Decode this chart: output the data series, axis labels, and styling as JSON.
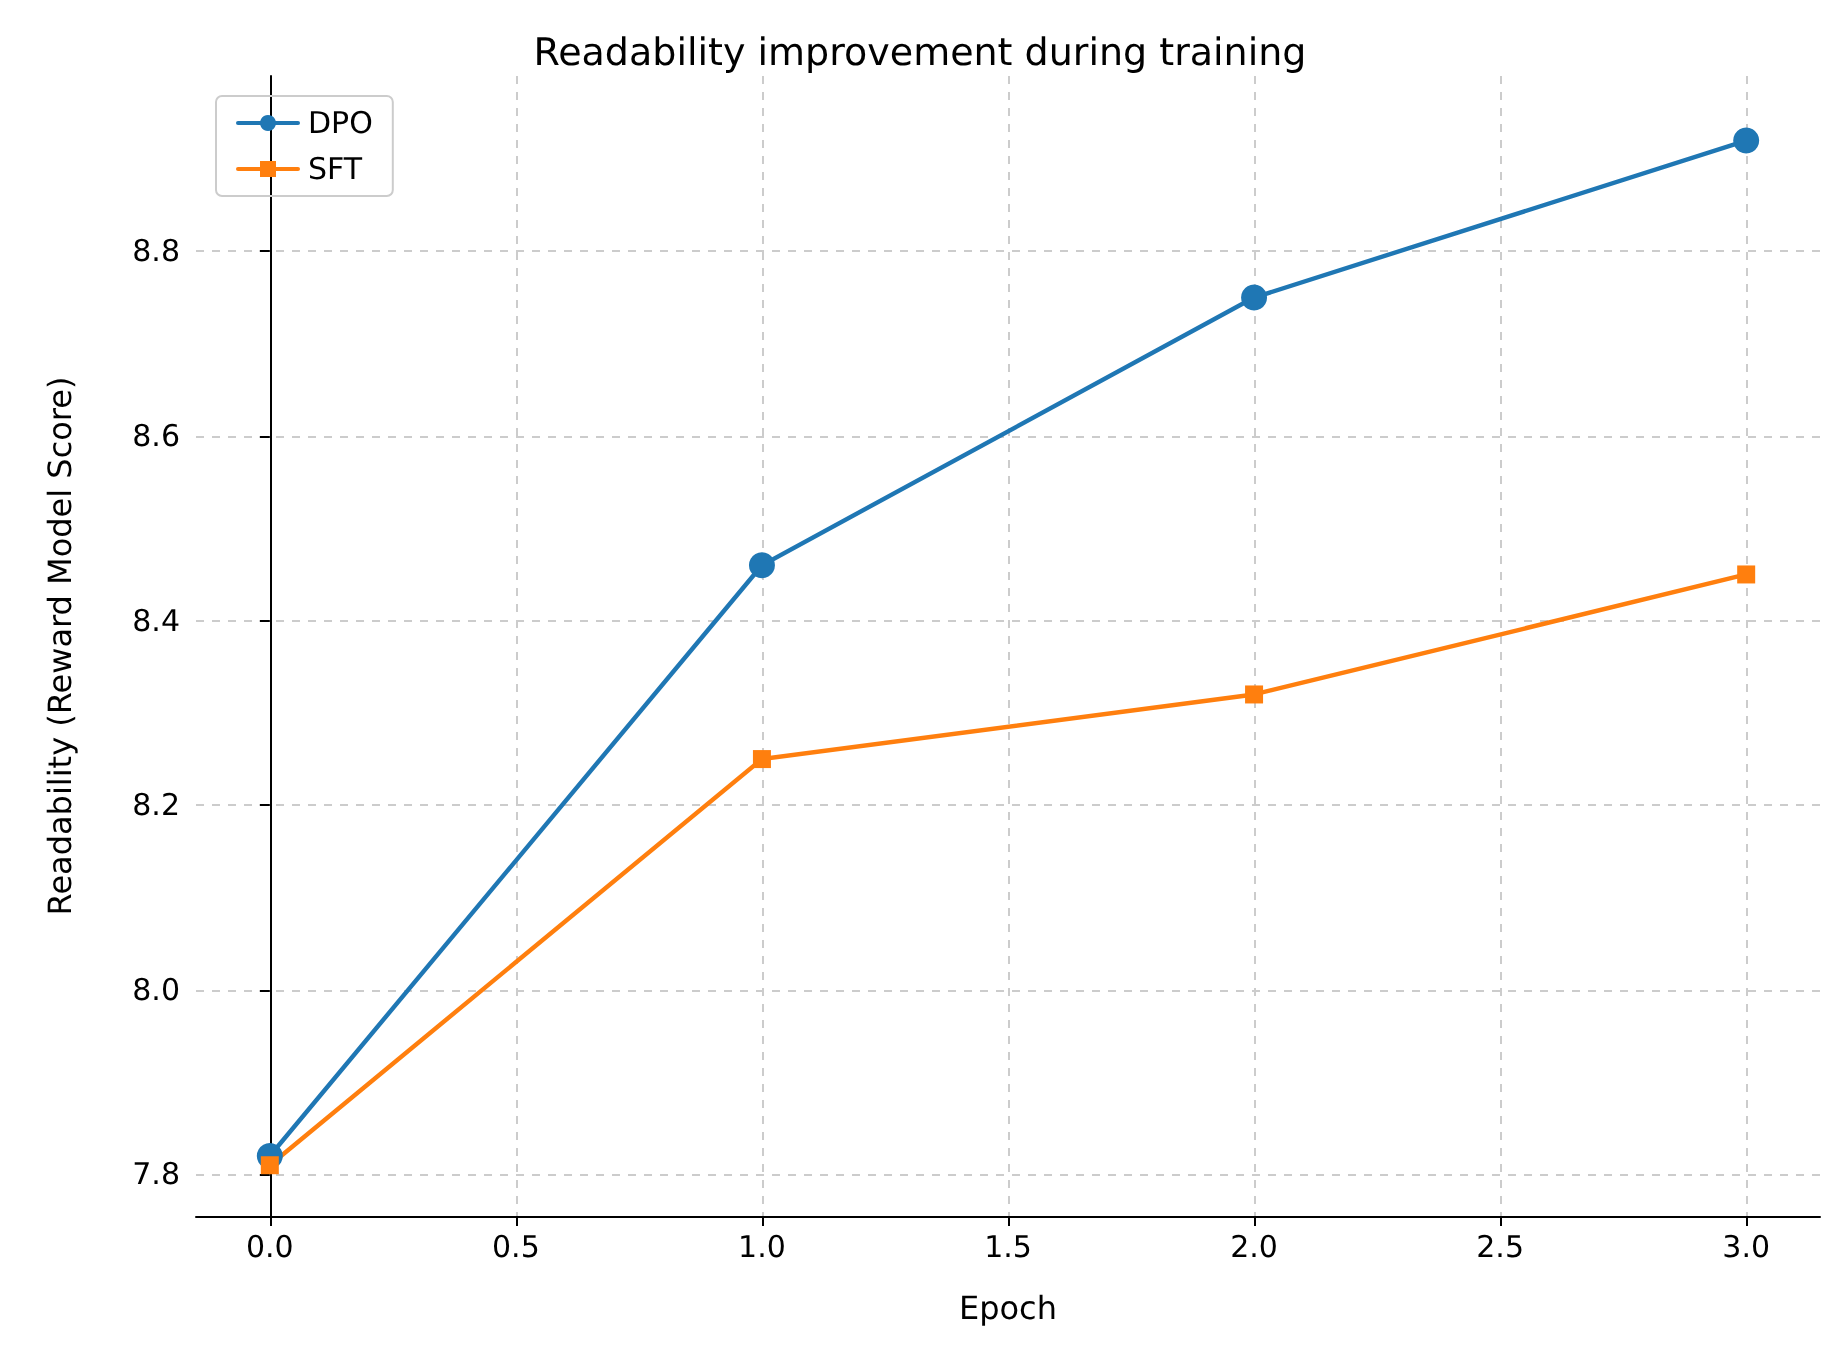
{
  "chart_data": {
    "type": "line",
    "title": "Readability improvement during training",
    "xlabel": "Epoch",
    "ylabel": "Readability (Reward Model Score)",
    "x": [
      0,
      1,
      2,
      3
    ],
    "series": [
      {
        "name": "DPO",
        "color": "#1f77b4",
        "marker": "circle",
        "values": [
          7.82,
          8.46,
          8.75,
          8.92
        ]
      },
      {
        "name": "SFT",
        "color": "#ff7f0e",
        "marker": "square",
        "values": [
          7.81,
          8.25,
          8.32,
          8.45
        ]
      }
    ],
    "xlim": [
      -0.15,
      3.15
    ],
    "xticks": [
      {
        "value": 0,
        "label": "0.0"
      },
      {
        "value": 0.5,
        "label": "0.5"
      },
      {
        "value": 1,
        "label": "1.0"
      },
      {
        "value": 1.5,
        "label": "1.5"
      },
      {
        "value": 2,
        "label": "2.0"
      },
      {
        "value": 2.5,
        "label": "2.5"
      },
      {
        "value": 3,
        "label": "3.0"
      }
    ],
    "ylim": [
      7.755,
      8.99
    ],
    "yticks": [
      {
        "value": 7.8,
        "label": "7.8"
      },
      {
        "value": 8,
        "label": "8.0"
      },
      {
        "value": 8.2,
        "label": "8.2"
      },
      {
        "value": 8.4,
        "label": "8.4"
      },
      {
        "value": 8.6,
        "label": "8.6"
      },
      {
        "value": 8.8,
        "label": "8.8"
      }
    ],
    "grid": true,
    "legend": "top left",
    "line_style": "solid"
  }
}
